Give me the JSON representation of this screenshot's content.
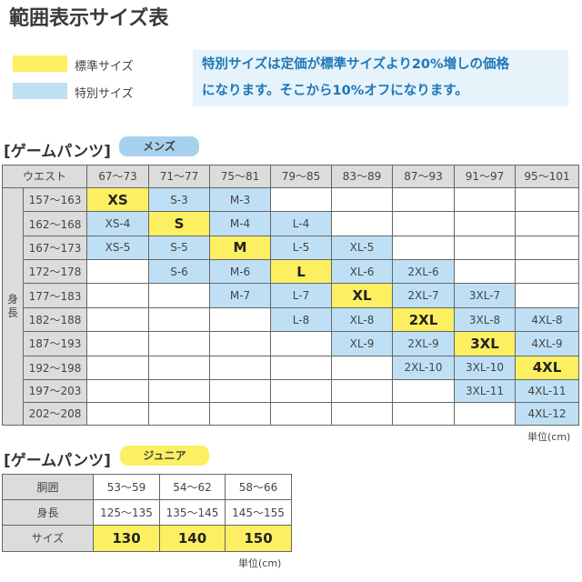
{
  "title": "範囲表示サイズ表",
  "legend": [
    {
      "label": "標準サイズ",
      "color": "#fdef62"
    },
    {
      "label": "特別サイズ",
      "color": "#bfe0f4"
    }
  ],
  "notice": {
    "line1": "特別サイズは定価が標準サイズより20%増しの価格",
    "line2": "になります。そこから10%オフになります。"
  },
  "mens": {
    "heading": "[ゲームパンツ]",
    "badge": "メンズ",
    "badge_color": "#a7d2ee",
    "corner_label": "ウエスト",
    "side_label_1": "身",
    "side_label_2": "長",
    "waist": [
      "67〜73",
      "71〜77",
      "75〜81",
      "79〜85",
      "83〜89",
      "87〜93",
      "91〜97",
      "95〜101"
    ],
    "rows": [
      {
        "height": "157〜163",
        "cells": [
          [
            "XS",
            "y"
          ],
          [
            "S-3",
            "b"
          ],
          [
            "M-3",
            "b"
          ],
          [
            "",
            ""
          ],
          [
            "",
            ""
          ],
          [
            "",
            ""
          ],
          [
            "",
            ""
          ],
          [
            "",
            ""
          ]
        ]
      },
      {
        "height": "162〜168",
        "cells": [
          [
            "XS-4",
            "b"
          ],
          [
            "S",
            "y"
          ],
          [
            "M-4",
            "b"
          ],
          [
            "L-4",
            "b"
          ],
          [
            "",
            ""
          ],
          [
            "",
            ""
          ],
          [
            "",
            ""
          ],
          [
            "",
            ""
          ]
        ]
      },
      {
        "height": "167〜173",
        "cells": [
          [
            "XS-5",
            "b"
          ],
          [
            "S-5",
            "b"
          ],
          [
            "M",
            "y"
          ],
          [
            "L-5",
            "b"
          ],
          [
            "XL-5",
            "b"
          ],
          [
            "",
            ""
          ],
          [
            "",
            ""
          ],
          [
            "",
            ""
          ]
        ]
      },
      {
        "height": "172〜178",
        "cells": [
          [
            "",
            ""
          ],
          [
            "S-6",
            "b"
          ],
          [
            "M-6",
            "b"
          ],
          [
            "L",
            "y"
          ],
          [
            "XL-6",
            "b"
          ],
          [
            "2XL-6",
            "b"
          ],
          [
            "",
            ""
          ],
          [
            "",
            ""
          ]
        ]
      },
      {
        "height": "177〜183",
        "cells": [
          [
            "",
            ""
          ],
          [
            "",
            ""
          ],
          [
            "M-7",
            "b"
          ],
          [
            "L-7",
            "b"
          ],
          [
            "XL",
            "y"
          ],
          [
            "2XL-7",
            "b"
          ],
          [
            "3XL-7",
            "b"
          ],
          [
            "",
            ""
          ]
        ]
      },
      {
        "height": "182〜188",
        "cells": [
          [
            "",
            ""
          ],
          [
            "",
            ""
          ],
          [
            "",
            ""
          ],
          [
            "L-8",
            "b"
          ],
          [
            "XL-8",
            "b"
          ],
          [
            "2XL",
            "y"
          ],
          [
            "3XL-8",
            "b"
          ],
          [
            "4XL-8",
            "b"
          ]
        ]
      },
      {
        "height": "187〜193",
        "cells": [
          [
            "",
            ""
          ],
          [
            "",
            ""
          ],
          [
            "",
            ""
          ],
          [
            "",
            ""
          ],
          [
            "XL-9",
            "b"
          ],
          [
            "2XL-9",
            "b"
          ],
          [
            "3XL",
            "y"
          ],
          [
            "4XL-9",
            "b"
          ]
        ]
      },
      {
        "height": "192〜198",
        "cells": [
          [
            "",
            ""
          ],
          [
            "",
            ""
          ],
          [
            "",
            ""
          ],
          [
            "",
            ""
          ],
          [
            "",
            ""
          ],
          [
            "2XL-10",
            "b"
          ],
          [
            "3XL-10",
            "b"
          ],
          [
            "4XL",
            "y"
          ]
        ]
      },
      {
        "height": "197〜203",
        "cells": [
          [
            "",
            ""
          ],
          [
            "",
            ""
          ],
          [
            "",
            ""
          ],
          [
            "",
            ""
          ],
          [
            "",
            ""
          ],
          [
            "",
            ""
          ],
          [
            "3XL-11",
            "b"
          ],
          [
            "4XL-11",
            "b"
          ]
        ]
      },
      {
        "height": "202〜208",
        "cells": [
          [
            "",
            ""
          ],
          [
            "",
            ""
          ],
          [
            "",
            ""
          ],
          [
            "",
            ""
          ],
          [
            "",
            ""
          ],
          [
            "",
            ""
          ],
          [
            "",
            ""
          ],
          [
            "4XL-12",
            "b"
          ]
        ]
      }
    ],
    "unit": "単位(cm)"
  },
  "junior": {
    "heading": "[ゲームパンツ]",
    "badge": "ジュニア",
    "badge_color": "#fdef62",
    "row_labels": [
      "胴囲",
      "身長",
      "サイズ"
    ],
    "waist": [
      "53〜59",
      "54〜62",
      "58〜66"
    ],
    "height": [
      "125〜135",
      "135〜145",
      "145〜155"
    ],
    "size": [
      "130",
      "140",
      "150"
    ],
    "unit": "単位(cm)"
  }
}
